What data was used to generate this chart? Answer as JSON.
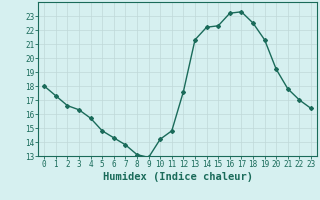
{
  "x": [
    0,
    1,
    2,
    3,
    4,
    5,
    6,
    7,
    8,
    9,
    10,
    11,
    12,
    13,
    14,
    15,
    16,
    17,
    18,
    19,
    20,
    21,
    22,
    23
  ],
  "y": [
    18.0,
    17.3,
    16.6,
    16.3,
    15.7,
    14.8,
    14.3,
    13.8,
    13.1,
    12.9,
    14.2,
    14.8,
    17.6,
    21.3,
    22.2,
    22.3,
    23.2,
    23.3,
    22.5,
    21.3,
    19.2,
    17.8,
    17.0,
    16.4
  ],
  "line_color": "#1a6b5a",
  "bg_color": "#d6f0f0",
  "grid_color": "#c0d8d8",
  "xlabel": "Humidex (Indice chaleur)",
  "ylim": [
    13,
    24
  ],
  "xlim": [
    -0.5,
    23.5
  ],
  "yticks": [
    13,
    14,
    15,
    16,
    17,
    18,
    19,
    20,
    21,
    22,
    23
  ],
  "xticks": [
    0,
    1,
    2,
    3,
    4,
    5,
    6,
    7,
    8,
    9,
    10,
    11,
    12,
    13,
    14,
    15,
    16,
    17,
    18,
    19,
    20,
    21,
    22,
    23
  ],
  "tick_fontsize": 5.5,
  "label_fontsize": 7.5,
  "marker": "D",
  "marker_size": 2.0,
  "linewidth": 1.0
}
